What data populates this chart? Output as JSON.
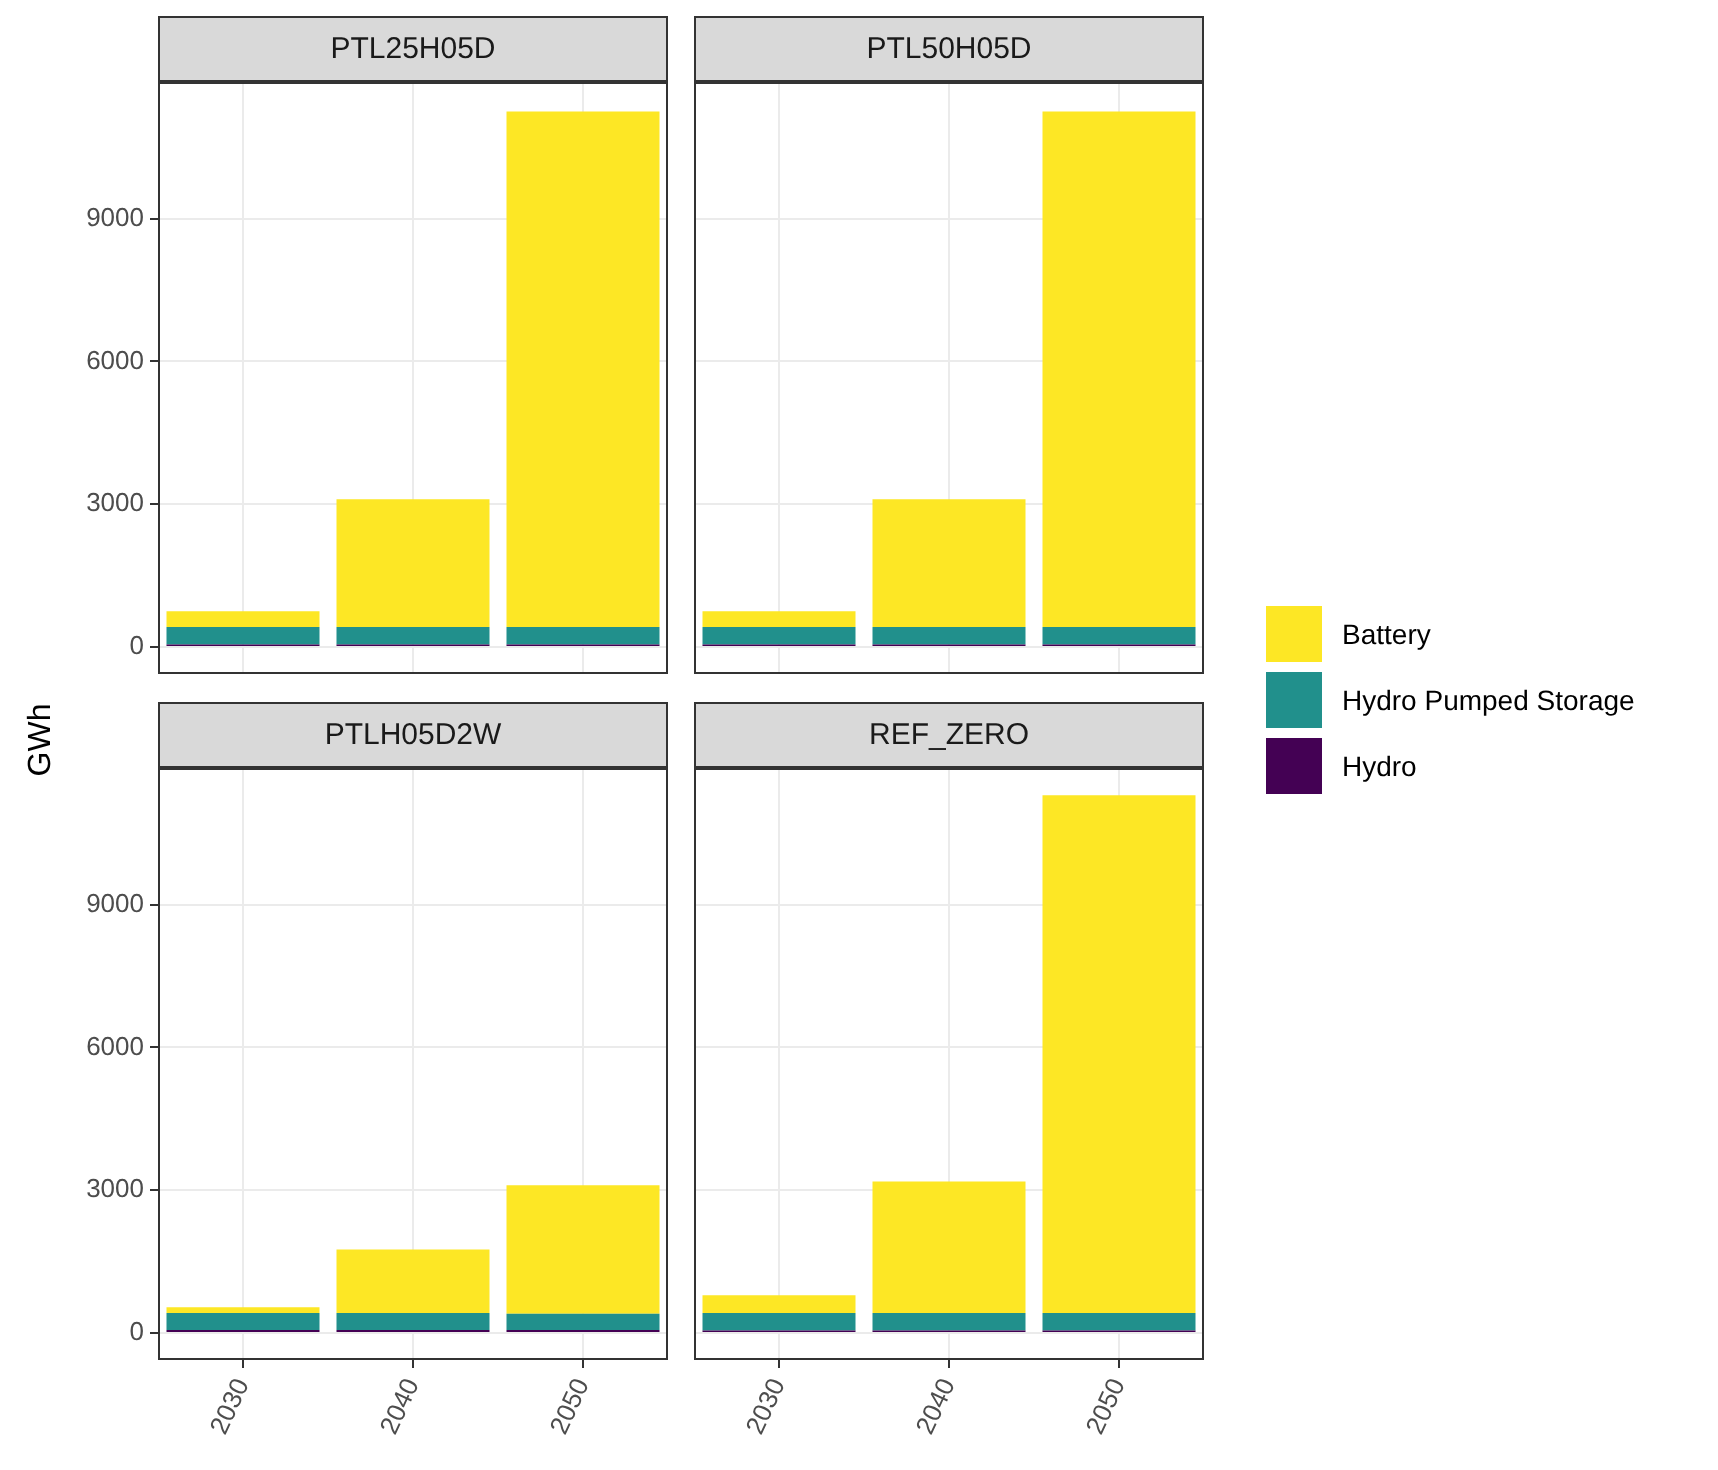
{
  "chart_data": [
    {
      "type": "bar",
      "title": "PTL25H05D",
      "ylabel": "GWh",
      "stacked": true,
      "categories": [
        "2030",
        "2040",
        "2050"
      ],
      "ylim": [
        -570,
        11870
      ],
      "yticks": [
        0,
        3000,
        6000,
        9000
      ],
      "grid": true,
      "legend": "right",
      "tick_labels": "y",
      "series": [
        {
          "name": "Hydro",
          "color": "#440154",
          "values": [
            50,
            50,
            50
          ]
        },
        {
          "name": "Hydro Pumped Storage",
          "color": "#21908c",
          "values": [
            370,
            370,
            370
          ]
        },
        {
          "name": "Battery",
          "color": "#fde725",
          "values": [
            330,
            2680,
            10830
          ]
        }
      ]
    },
    {
      "type": "bar",
      "title": "PTL50H05D",
      "stacked": true,
      "categories": [
        "2030",
        "2040",
        "2050"
      ],
      "ylim": [
        -570,
        11870
      ],
      "yticks": [
        0,
        3000,
        6000,
        9000
      ],
      "grid": true,
      "tick_labels": false,
      "series": [
        {
          "color": "#440154",
          "values": [
            50,
            50,
            50
          ]
        },
        {
          "color": "#21908c",
          "values": [
            370,
            370,
            370
          ]
        },
        {
          "color": "#fde725",
          "values": [
            330,
            2680,
            10830
          ]
        }
      ]
    },
    {
      "type": "bar",
      "title": "PTLH05D2W",
      "stacked": true,
      "categories": [
        "2030",
        "2040",
        "2050"
      ],
      "ylim": [
        -570,
        11870
      ],
      "yticks": [
        0,
        3000,
        6000,
        9000
      ],
      "grid": true,
      "series": [
        {
          "color": "#440154",
          "values": [
            60,
            60,
            60
          ]
        },
        {
          "color": "#21908c",
          "values": [
            360,
            360,
            340
          ]
        },
        {
          "color": "#fde725",
          "values": [
            120,
            1330,
            2700
          ]
        }
      ]
    },
    {
      "type": "bar",
      "title": "REF_ZERO",
      "stacked": true,
      "categories": [
        "2030",
        "2040",
        "2050"
      ],
      "ylim": [
        -570,
        11870
      ],
      "yticks": [
        0,
        3000,
        6000,
        9000
      ],
      "grid": true,
      "tick_labels": "x",
      "series": [
        {
          "color": "#440154",
          "values": [
            50,
            50,
            50
          ]
        },
        {
          "color": "#21908c",
          "values": [
            370,
            370,
            370
          ]
        },
        {
          "color": "#fde725",
          "values": [
            370,
            2760,
            10880
          ]
        }
      ]
    }
  ]
}
